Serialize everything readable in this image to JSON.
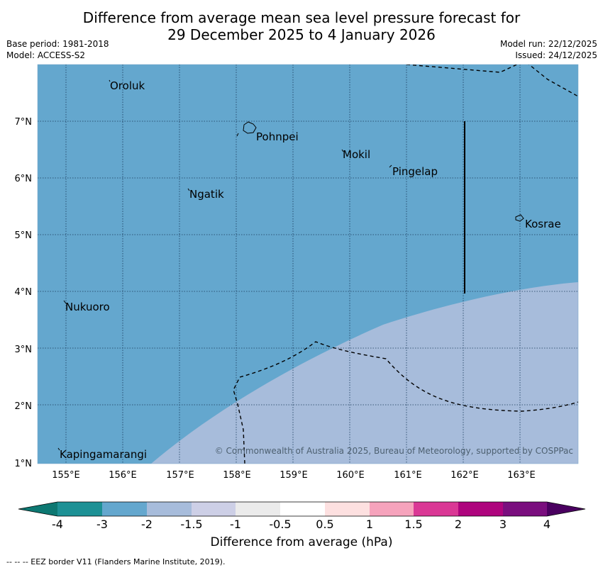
{
  "title": {
    "line1": "Difference from average mean sea level pressure forecast for",
    "line2": "29 December 2025 to 4 January 2026"
  },
  "meta": {
    "base_period": "Base period: 1981-2018",
    "model": "Model: ACCESS-S2",
    "model_run": "Model run: 22/12/2025",
    "issued": "Issued: 24/12/2025"
  },
  "map": {
    "lon_labels": [
      "155°E",
      "156°E",
      "157°E",
      "158°E",
      "159°E",
      "160°E",
      "161°E",
      "162°E",
      "163°E"
    ],
    "lat_labels": [
      "7°N",
      "6°N",
      "5°N",
      "4°N",
      "3°N",
      "2°N",
      "1°N"
    ],
    "places": [
      "Oroluk",
      "Pohnpei",
      "Mokil",
      "Pingelap",
      "Ngatik",
      "Kosrae",
      "Nukuoro",
      "Kapingamarangi"
    ],
    "copyright": "© Commonwealth of Australia 2025, Bureau of Meteorology, supported by COSPPac",
    "fill_colors": {
      "range_-3_-2": "#64a7ce",
      "range_-2_-1.5": "#a7bcdb"
    }
  },
  "colorbar": {
    "ticks": [
      "-4",
      "-3",
      "-2",
      "-1.5",
      "-1",
      "-0.5",
      "0.5",
      "1",
      "1.5",
      "2",
      "3",
      "4"
    ],
    "colors": [
      "#0d7872",
      "#1d9195",
      "#64a7ce",
      "#a7bcdb",
      "#cdcfe6",
      "#ebebeb",
      "#ffffff",
      "#fde0e0",
      "#f6a3bc",
      "#da3895",
      "#ae047d",
      "#7a0e7e",
      "#4a0060"
    ],
    "label": "Difference from average (hPa)"
  },
  "footer": "--  --  -- EEZ border V11 (Flanders Marine Institute, 2019)."
}
